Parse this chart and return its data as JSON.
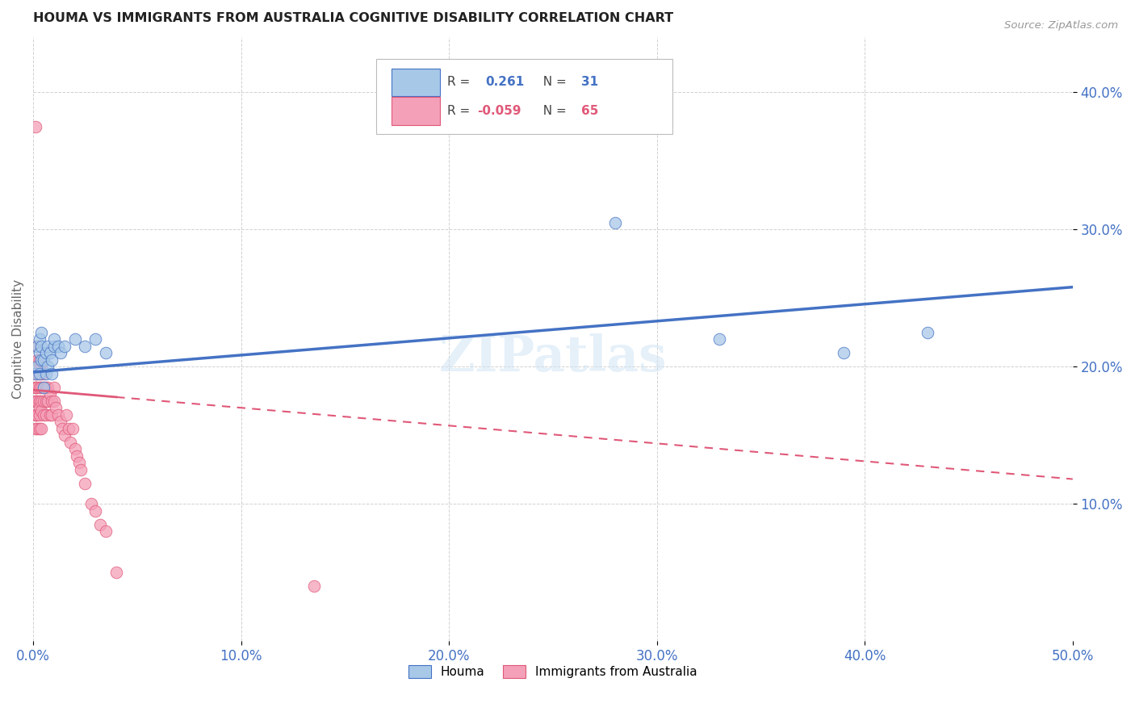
{
  "title": "HOUMA VS IMMIGRANTS FROM AUSTRALIA COGNITIVE DISABILITY CORRELATION CHART",
  "source": "Source: ZipAtlas.com",
  "ylabel": "Cognitive Disability",
  "xlim": [
    0.0,
    0.5
  ],
  "ylim": [
    0.0,
    0.44
  ],
  "xticks": [
    0.0,
    0.1,
    0.2,
    0.3,
    0.4,
    0.5
  ],
  "yticks": [
    0.1,
    0.2,
    0.3,
    0.4
  ],
  "xticklabels": [
    "0.0%",
    "10.0%",
    "20.0%",
    "30.0%",
    "40.0%",
    "50.0%"
  ],
  "yticklabels": [
    "10.0%",
    "20.0%",
    "30.0%",
    "40.0%"
  ],
  "watermark": "ZIPatlas",
  "color_houma": "#a8c8e8",
  "color_australia": "#f4a0b8",
  "color_trendline_houma": "#4472c4",
  "color_trendline_australia": "#e05878",
  "houma_x": [
    0.001,
    0.002,
    0.002,
    0.003,
    0.003,
    0.003,
    0.004,
    0.004,
    0.004,
    0.005,
    0.005,
    0.006,
    0.006,
    0.007,
    0.007,
    0.008,
    0.009,
    0.009,
    0.01,
    0.01,
    0.012,
    0.013,
    0.015,
    0.02,
    0.025,
    0.03,
    0.035,
    0.33,
    0.39,
    0.43,
    0.28
  ],
  "houma_y": [
    0.195,
    0.2,
    0.215,
    0.21,
    0.22,
    0.195,
    0.205,
    0.215,
    0.225,
    0.185,
    0.205,
    0.21,
    0.195,
    0.215,
    0.2,
    0.21,
    0.205,
    0.195,
    0.215,
    0.22,
    0.215,
    0.21,
    0.215,
    0.22,
    0.215,
    0.22,
    0.21,
    0.22,
    0.21,
    0.225,
    0.305
  ],
  "australia_x": [
    0.001,
    0.001,
    0.001,
    0.001,
    0.001,
    0.001,
    0.001,
    0.001,
    0.001,
    0.002,
    0.002,
    0.002,
    0.002,
    0.002,
    0.002,
    0.002,
    0.003,
    0.003,
    0.003,
    0.003,
    0.003,
    0.003,
    0.003,
    0.003,
    0.004,
    0.004,
    0.004,
    0.004,
    0.004,
    0.004,
    0.005,
    0.005,
    0.005,
    0.005,
    0.006,
    0.006,
    0.006,
    0.007,
    0.007,
    0.008,
    0.008,
    0.009,
    0.009,
    0.01,
    0.01,
    0.011,
    0.012,
    0.013,
    0.014,
    0.015,
    0.016,
    0.017,
    0.018,
    0.019,
    0.02,
    0.021,
    0.022,
    0.023,
    0.025,
    0.028,
    0.03,
    0.032,
    0.035,
    0.04,
    0.135
  ],
  "australia_y": [
    0.375,
    0.195,
    0.185,
    0.185,
    0.175,
    0.175,
    0.165,
    0.165,
    0.155,
    0.215,
    0.205,
    0.195,
    0.185,
    0.175,
    0.165,
    0.155,
    0.205,
    0.2,
    0.195,
    0.185,
    0.175,
    0.17,
    0.165,
    0.155,
    0.2,
    0.195,
    0.185,
    0.175,
    0.168,
    0.155,
    0.195,
    0.185,
    0.175,
    0.165,
    0.185,
    0.175,
    0.165,
    0.185,
    0.175,
    0.18,
    0.165,
    0.175,
    0.165,
    0.185,
    0.175,
    0.17,
    0.165,
    0.16,
    0.155,
    0.15,
    0.165,
    0.155,
    0.145,
    0.155,
    0.14,
    0.135,
    0.13,
    0.125,
    0.115,
    0.1,
    0.095,
    0.085,
    0.08,
    0.05,
    0.04
  ],
  "background_color": "#ffffff",
  "grid_color": "#cccccc",
  "trendline_houma_x0": 0.0,
  "trendline_houma_y0": 0.196,
  "trendline_houma_x1": 0.5,
  "trendline_houma_y1": 0.258,
  "trendline_aus_x0": 0.0,
  "trendline_aus_y0": 0.183,
  "trendline_aus_x1": 0.5,
  "trendline_aus_y1": 0.118
}
